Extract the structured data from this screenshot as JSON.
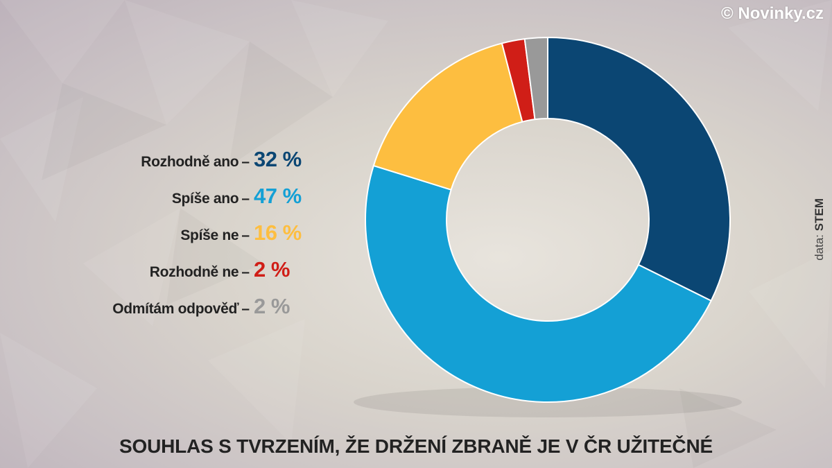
{
  "watermark": "© Novinky.cz",
  "source": {
    "prefix": "data: ",
    "name": "STEM"
  },
  "legend": [
    {
      "label": "Rozhodně ano",
      "value": "32 %"
    },
    {
      "label": "Spíše ano",
      "value": "47 %"
    },
    {
      "label": "Spíše ne",
      "value": "16 %"
    },
    {
      "label": "Rozhodně ne",
      "value": "2 %"
    },
    {
      "label": "Odmítám odpověď",
      "value": "2 %"
    }
  ],
  "chart_data": {
    "type": "pie",
    "title": "SOUHLAS S TVRZENÍM, ŽE DRŽENÍ ZBRANĚ JE V ČR UŽITEČNÉ",
    "categories": [
      "Rozhodně ano",
      "Spíše ano",
      "Spíše ne",
      "Rozhodně ne",
      "Odmítám odpověď"
    ],
    "values": [
      32,
      47,
      16,
      2,
      2
    ],
    "unit": "%",
    "colors": [
      "#0b4673",
      "#14a0d5",
      "#fdbe40",
      "#d01e17",
      "#999999"
    ],
    "hole": "donut",
    "legend_position": "left"
  }
}
